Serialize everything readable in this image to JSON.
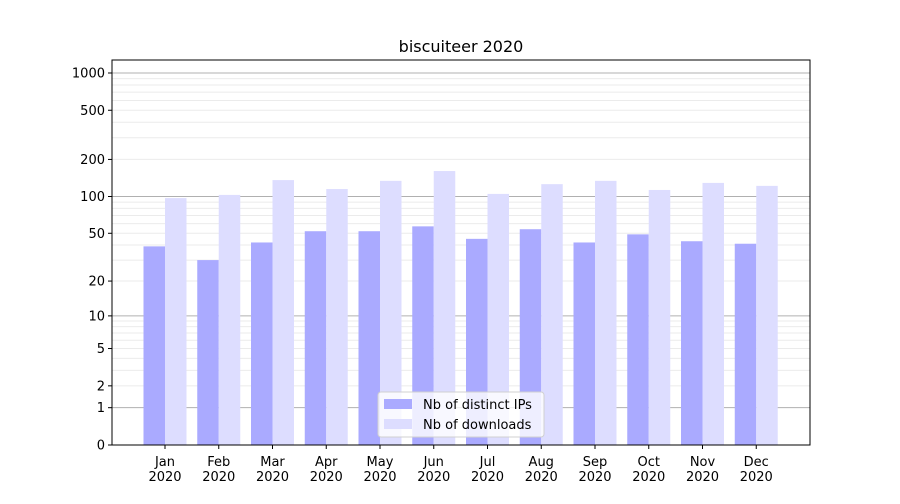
{
  "chart_data": {
    "type": "bar",
    "title": "biscuiteer 2020",
    "xlabel": "",
    "ylabel": "",
    "yscale": "log(1+y)",
    "ylim": [
      0,
      1273
    ],
    "yticks": [
      0,
      1,
      2,
      5,
      10,
      20,
      50,
      100,
      200,
      500,
      1000
    ],
    "grid": true,
    "legend_position": "bottom-center",
    "categories": [
      "Jan\n2020",
      "Feb\n2020",
      "Mar\n2020",
      "Apr\n2020",
      "May\n2020",
      "Jun\n2020",
      "Jul\n2020",
      "Aug\n2020",
      "Sep\n2020",
      "Oct\n2020",
      "Nov\n2020",
      "Dec\n2020"
    ],
    "series": [
      {
        "name": "Nb of distinct IPs",
        "color": "#aaaaff",
        "values": [
          39,
          30,
          42,
          52,
          52,
          57,
          45,
          54,
          42,
          49,
          43,
          41
        ]
      },
      {
        "name": "Nb of downloads",
        "color": "#ddddff",
        "values": [
          97,
          103,
          136,
          115,
          134,
          161,
          105,
          126,
          134,
          113,
          129,
          122
        ]
      }
    ]
  }
}
